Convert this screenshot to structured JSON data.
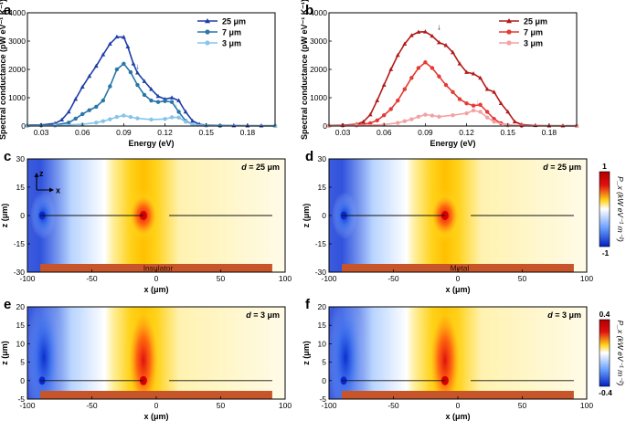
{
  "chart_data": [
    {
      "id": "a",
      "type": "line",
      "panel_label": "a",
      "xlabel": "Energy (eV)",
      "ylabel": "Spectral conductance (pW eV⁻¹ K⁻¹)",
      "xlim": [
        0.02,
        0.2
      ],
      "ylim": [
        0,
        4000
      ],
      "xticks": [
        0.03,
        0.06,
        0.09,
        0.12,
        0.15,
        0.18
      ],
      "xtick_labels": [
        "0.03",
        "0.06",
        "0.09",
        "0.12",
        "0.15",
        "0.18"
      ],
      "yticks": [
        0,
        1000,
        2000,
        3000,
        4000
      ],
      "ytick_labels": [
        "0",
        "1000",
        "2000",
        "3000",
        "4000"
      ],
      "series": [
        {
          "name": "25 μm",
          "color": "#1f3fa8",
          "marker": "triangle",
          "x": [
            0.02,
            0.03,
            0.04,
            0.045,
            0.05,
            0.055,
            0.06,
            0.065,
            0.07,
            0.075,
            0.08,
            0.085,
            0.09,
            0.093,
            0.097,
            0.1,
            0.105,
            0.11,
            0.115,
            0.12,
            0.125,
            0.13,
            0.135,
            0.14,
            0.145,
            0.15,
            0.16,
            0.17,
            0.18,
            0.19,
            0.2
          ],
          "values": [
            30,
            40,
            90,
            220,
            500,
            950,
            1380,
            1760,
            2120,
            2520,
            2900,
            3150,
            3140,
            2800,
            2200,
            1880,
            1580,
            1300,
            1050,
            950,
            1000,
            900,
            500,
            180,
            60,
            30,
            20,
            15,
            10,
            10,
            10
          ]
        },
        {
          "name": "7 μm",
          "color": "#2a76a8",
          "marker": "circle",
          "x": [
            0.02,
            0.03,
            0.04,
            0.05,
            0.055,
            0.06,
            0.065,
            0.07,
            0.075,
            0.08,
            0.085,
            0.09,
            0.095,
            0.1,
            0.105,
            0.11,
            0.115,
            0.12,
            0.125,
            0.13,
            0.135,
            0.14,
            0.15,
            0.16,
            0.2
          ],
          "values": [
            10,
            20,
            40,
            120,
            260,
            420,
            560,
            680,
            900,
            1400,
            2000,
            2200,
            1900,
            1450,
            1100,
            900,
            850,
            880,
            850,
            500,
            180,
            60,
            20,
            10,
            5
          ]
        },
        {
          "name": "3 μm",
          "color": "#86c5ea",
          "marker": "circle",
          "x": [
            0.02,
            0.04,
            0.06,
            0.07,
            0.075,
            0.08,
            0.085,
            0.09,
            0.095,
            0.1,
            0.11,
            0.12,
            0.125,
            0.13,
            0.135,
            0.14,
            0.15,
            0.2
          ],
          "values": [
            5,
            15,
            60,
            120,
            170,
            240,
            320,
            370,
            320,
            270,
            230,
            250,
            310,
            300,
            150,
            60,
            15,
            5
          ]
        }
      ],
      "annotations": [
        "↓",
        "↓"
      ]
    },
    {
      "id": "b",
      "type": "line",
      "panel_label": "b",
      "xlabel": "Energy (eV)",
      "ylabel": "Spectral conductance (pW eV⁻¹ K⁻¹)",
      "xlim": [
        0.02,
        0.2
      ],
      "ylim": [
        0,
        4000
      ],
      "xticks": [
        0.03,
        0.06,
        0.09,
        0.12,
        0.15,
        0.18
      ],
      "xtick_labels": [
        "0.03",
        "0.06",
        "0.09",
        "0.12",
        "0.15",
        "0.18"
      ],
      "yticks": [
        0,
        1000,
        2000,
        3000,
        4000
      ],
      "ytick_labels": [
        "0",
        "1000",
        "2000",
        "3000",
        "4000"
      ],
      "series": [
        {
          "name": "25 μm",
          "color": "#b31b1b",
          "marker": "triangle",
          "x": [
            0.02,
            0.03,
            0.04,
            0.045,
            0.05,
            0.055,
            0.06,
            0.065,
            0.07,
            0.075,
            0.08,
            0.085,
            0.09,
            0.095,
            0.1,
            0.105,
            0.11,
            0.115,
            0.12,
            0.125,
            0.13,
            0.135,
            0.14,
            0.145,
            0.15,
            0.155,
            0.16,
            0.17,
            0.18,
            0.19,
            0.2
          ],
          "values": [
            20,
            30,
            60,
            150,
            400,
            900,
            1450,
            2000,
            2500,
            2900,
            3200,
            3320,
            3330,
            3180,
            2950,
            2850,
            2600,
            2200,
            1900,
            1850,
            1700,
            1300,
            1200,
            800,
            500,
            150,
            50,
            20,
            10,
            10,
            10
          ]
        },
        {
          "name": "7 μm",
          "color": "#e53935",
          "marker": "circle",
          "x": [
            0.02,
            0.03,
            0.04,
            0.05,
            0.055,
            0.06,
            0.065,
            0.07,
            0.075,
            0.08,
            0.085,
            0.09,
            0.095,
            0.1,
            0.105,
            0.11,
            0.115,
            0.12,
            0.125,
            0.13,
            0.135,
            0.14,
            0.145,
            0.15,
            0.16,
            0.2
          ],
          "values": [
            10,
            20,
            40,
            100,
            200,
            380,
            600,
            900,
            1300,
            1700,
            2050,
            2250,
            2050,
            1750,
            1450,
            1200,
            950,
            800,
            720,
            750,
            500,
            250,
            100,
            30,
            10,
            5
          ]
        },
        {
          "name": "3 μm",
          "color": "#f2a3a3",
          "marker": "circle",
          "x": [
            0.02,
            0.04,
            0.06,
            0.07,
            0.075,
            0.08,
            0.085,
            0.09,
            0.095,
            0.1,
            0.11,
            0.12,
            0.125,
            0.13,
            0.135,
            0.14,
            0.15,
            0.2
          ],
          "values": [
            5,
            15,
            50,
            110,
            170,
            240,
            330,
            400,
            370,
            330,
            380,
            450,
            550,
            500,
            300,
            150,
            20,
            5
          ]
        }
      ],
      "annotations": [
        "↓",
        "↓"
      ]
    },
    {
      "id": "c",
      "type": "heatmap",
      "panel_label": "c",
      "xlabel": "x (μm)",
      "ylabel": "z (μm)",
      "xlim": [
        -100,
        100
      ],
      "ylim": [
        -30,
        30
      ],
      "xticks": [
        -100,
        -50,
        0,
        50,
        100
      ],
      "xtick_labels": [
        "-100",
        "-50",
        "0",
        "50",
        "100"
      ],
      "yticks": [
        -30,
        -15,
        0,
        15,
        30
      ],
      "ytick_labels": [
        "-30",
        "-15",
        "0",
        "15",
        "30"
      ],
      "d_label": "d = 25 μm",
      "d_var": "d",
      "d_value": "= 25 μm",
      "substrate_label": "Insulator",
      "axes_glyph": {
        "z": "z",
        "x": "x"
      },
      "source_x": -90,
      "hot_x": -10,
      "wire_left": [
        -90,
        -10
      ],
      "wire_right": [
        10,
        90
      ],
      "substrate_x": [
        -90,
        90
      ],
      "zmin": -1,
      "zmax": 1
    },
    {
      "id": "d",
      "type": "heatmap",
      "panel_label": "d",
      "xlabel": "x (μm)",
      "ylabel": "z (μm)",
      "xlim": [
        -100,
        100
      ],
      "ylim": [
        -30,
        30
      ],
      "xticks": [
        -100,
        -50,
        0,
        50,
        100
      ],
      "xtick_labels": [
        "-100",
        "-50",
        "0",
        "50",
        "100"
      ],
      "yticks": [
        -30,
        -15,
        0,
        15,
        30
      ],
      "ytick_labels": [
        "-30",
        "-15",
        "0",
        "15",
        "30"
      ],
      "d_label": "d = 25 μm",
      "d_var": "d",
      "d_value": "= 25 μm",
      "substrate_label": "Metal",
      "source_x": -90,
      "hot_x": -10,
      "wire_left": [
        -90,
        -10
      ],
      "wire_right": [
        10,
        90
      ],
      "substrate_x": [
        -90,
        90
      ],
      "zmin": -1,
      "zmax": 1,
      "colorbar": {
        "label": "P_x (kW eV⁻¹ m⁻²)",
        "max": "1",
        "min": "-1"
      }
    },
    {
      "id": "e",
      "type": "heatmap",
      "panel_label": "e",
      "xlabel": "x (μm)",
      "ylabel": "z (μm)",
      "xlim": [
        -100,
        100
      ],
      "ylim": [
        -5,
        20
      ],
      "xticks": [
        -100,
        -50,
        0,
        50,
        100
      ],
      "xtick_labels": [
        "-100",
        "-50",
        "0",
        "50",
        "100"
      ],
      "yticks": [
        -5,
        0,
        5,
        10,
        15,
        20
      ],
      "ytick_labels": [
        "-5",
        "0",
        "5",
        "10",
        "15",
        "20"
      ],
      "d_label": "d = 3 μm",
      "d_var": "d",
      "d_value": "= 3 μm",
      "source_x": -90,
      "hot_x": -10,
      "wire_left": [
        -90,
        -10
      ],
      "wire_right": [
        10,
        90
      ],
      "substrate_x": [
        -90,
        90
      ],
      "zmin": -0.4,
      "zmax": 0.4
    },
    {
      "id": "f",
      "type": "heatmap",
      "panel_label": "f",
      "xlabel": "x (μm)",
      "ylabel": "z (μm)",
      "xlim": [
        -100,
        100
      ],
      "ylim": [
        -5,
        20
      ],
      "xticks": [
        -100,
        -50,
        0,
        50,
        100
      ],
      "xtick_labels": [
        "-100",
        "-50",
        "0",
        "50",
        "100"
      ],
      "yticks": [
        -5,
        0,
        5,
        10,
        15,
        20
      ],
      "ytick_labels": [
        "-5",
        "0",
        "5",
        "10",
        "15",
        "20"
      ],
      "d_label": "d = 3 μm",
      "d_var": "d",
      "d_value": "= 3 μm",
      "source_x": -90,
      "hot_x": -10,
      "wire_left": [
        -90,
        -10
      ],
      "wire_right": [
        10,
        90
      ],
      "substrate_x": [
        -90,
        90
      ],
      "zmin": -0.4,
      "zmax": 0.4,
      "colorbar": {
        "label": "P_x (kW eV⁻¹ m⁻²)",
        "max": "0.4",
        "min": "-0.4"
      }
    }
  ],
  "colors": {
    "substrate": "#c8552a",
    "wire": "#111111",
    "map_neg": "#1a3fd8",
    "map_zero": "#fffbe8",
    "map_pos": "#e01010",
    "map_mid_pos": "#ffd21a"
  }
}
